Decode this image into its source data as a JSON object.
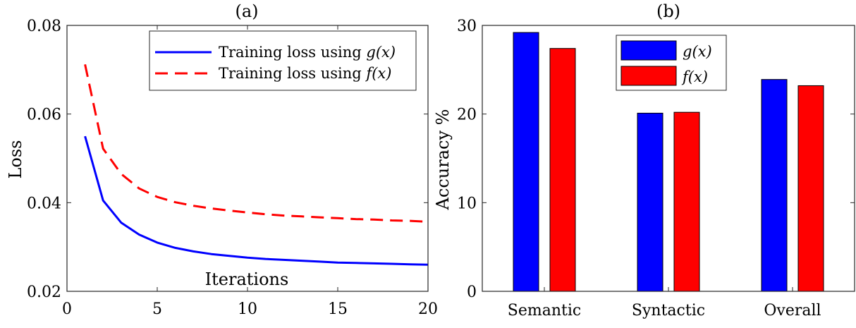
{
  "chart_data": [
    {
      "type": "line",
      "title": "(a)",
      "xlabel": "Iterations",
      "ylabel": "Loss",
      "xlim": [
        0,
        20
      ],
      "ylim": [
        0.02,
        0.08
      ],
      "xticks": [
        0,
        5,
        10,
        15,
        20
      ],
      "xtick_labels": [
        "0",
        "5",
        "10",
        "15",
        "20"
      ],
      "yticks": [
        0.02,
        0.04,
        0.06,
        0.08
      ],
      "ytick_labels": [
        "0.02",
        "0.04",
        "0.06",
        "0.08"
      ],
      "grid": false,
      "legend_position": "top-right",
      "x": [
        1,
        2,
        3,
        4,
        5,
        6,
        7,
        8,
        9,
        10,
        11,
        12,
        13,
        14,
        15,
        16,
        17,
        18,
        19,
        20
      ],
      "series": [
        {
          "name": "Training loss using g(x)",
          "legend_prefix": "Training loss using ",
          "legend_math": "g(x)",
          "color": "#0000ff",
          "dash": "solid",
          "values": [
            0.055,
            0.0405,
            0.0355,
            0.0328,
            0.031,
            0.0298,
            0.029,
            0.0284,
            0.028,
            0.0276,
            0.0273,
            0.0271,
            0.0269,
            0.0267,
            0.0265,
            0.0264,
            0.0263,
            0.0262,
            0.0261,
            0.026
          ]
        },
        {
          "name": "Training loss using f(x)",
          "legend_prefix": "Training loss using ",
          "legend_math": "f(x)",
          "color": "#ff0000",
          "dash": "dashed",
          "values": [
            0.0712,
            0.0522,
            0.0465,
            0.0432,
            0.0413,
            0.0401,
            0.0393,
            0.0387,
            0.0382,
            0.0378,
            0.0374,
            0.0371,
            0.0369,
            0.0367,
            0.0365,
            0.0363,
            0.0362,
            0.036,
            0.0359,
            0.0357
          ]
        }
      ]
    },
    {
      "type": "bar",
      "title": "(b)",
      "xlabel": "",
      "ylabel": "Accuracy %",
      "ylim": [
        0,
        30
      ],
      "yticks": [
        0,
        10,
        20,
        30
      ],
      "ytick_labels": [
        "0",
        "10",
        "20",
        "30"
      ],
      "grid": false,
      "legend_position": "top-center",
      "categories": [
        "Semantic",
        "Syntactic",
        "Overall"
      ],
      "series": [
        {
          "name": "g(x)",
          "color": "#0000ff",
          "values": [
            29.2,
            20.1,
            23.9
          ]
        },
        {
          "name": "f(x)",
          "color": "#ff0000",
          "values": [
            27.4,
            20.2,
            23.2
          ]
        }
      ]
    }
  ]
}
